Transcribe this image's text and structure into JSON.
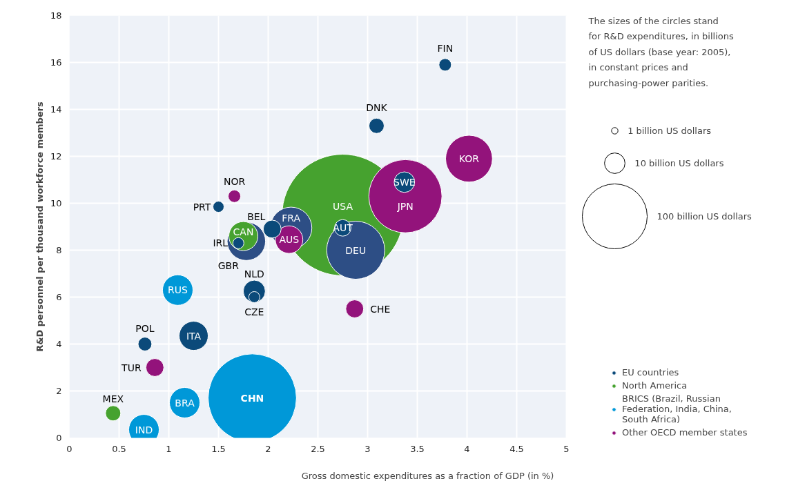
{
  "chart_data": {
    "type": "bubble",
    "xlabel": "Gross domestic expenditures as a fraction of GDP (in %)",
    "ylabel": "R&D personnel per thousand workforce members",
    "xlim": [
      0,
      5
    ],
    "xticks": [
      0,
      0.5,
      1,
      1.5,
      2,
      2.5,
      3,
      3.5,
      4,
      4.5,
      5
    ],
    "ylim": [
      0,
      18
    ],
    "yticks": [
      0,
      2,
      4,
      6,
      8,
      10,
      12,
      14,
      16,
      18
    ],
    "grid": true,
    "legend": "bottom right",
    "size_legend": [
      {
        "value": 1,
        "label": "1 billion US dollars"
      },
      {
        "value": 10,
        "label": "10  billion US dollars"
      },
      {
        "value": 100,
        "label": "100 billion US dollars"
      }
    ],
    "series": [
      {
        "name": "EU countries",
        "colors": [
          "#0b4a7a",
          "#0b4a7a",
          "#0b4a7a",
          "#2d4e85",
          "#0b4a7a",
          "#2d4e85",
          "#0b4a7a",
          "#2d4e85",
          "#0b4a7a",
          "#0b4a7a",
          "#0b4a7a",
          "#0b4a7a",
          "#0b4a7a",
          "#0b4a7a"
        ],
        "x": [
          3.78,
          3.09,
          3.37,
          2.88,
          2.75,
          2.23,
          2.04,
          1.78,
          1.7,
          1.5,
          1.86,
          1.86,
          0.76,
          1.25
        ],
        "values": [
          15.9,
          13.3,
          10.9,
          8.0,
          8.95,
          8.95,
          8.9,
          8.38,
          8.3,
          9.85,
          6.25,
          6.0,
          4.0,
          4.35
        ],
        "sizes": [
          3.7,
          5.5,
          10,
          80,
          6.5,
          41,
          7.6,
          35,
          2.9,
          2.9,
          11.6,
          2.9,
          4.5,
          20
        ]
      },
      {
        "name": "North America",
        "color": "#46a22f",
        "x": [
          2.75,
          1.75,
          0.44
        ],
        "values": [
          9.5,
          8.6,
          1.05
        ],
        "sizes": [
          350,
          20,
          5.5
        ]
      },
      {
        "name": "BRICS (Brazil, Russian Federation, India, China, South Africa)",
        "color": "#0098d8",
        "x": [
          1.09,
          1.16,
          0.75,
          1.84
        ],
        "values": [
          6.3,
          1.5,
          0.35,
          1.7
        ],
        "sizes": [
          22,
          22,
          22,
          185
        ]
      },
      {
        "name": "Other OECD member states",
        "color": "#93137b",
        "x": [
          4.02,
          3.38,
          2.21,
          1.66,
          0.86,
          2.87
        ],
        "values": [
          11.9,
          10.3,
          8.45,
          10.3,
          3.0,
          5.5
        ],
        "sizes": [
          52,
          127,
          18,
          3.7,
          7.6,
          7.6
        ]
      }
    ],
    "annotations": [
      "The sizes of the circles stand for R&D expenditures, in billions of US dollars (base year: 2005), in constant prices and purchasing-power parities.",
      {
        "text": "FIN",
        "x": 3.78,
        "y": 15.9
      },
      {
        "text": "DNK",
        "x": 3.09,
        "y": 13.3
      },
      {
        "text": "SWE",
        "x": 3.37,
        "y": 10.9
      },
      {
        "text": "DEU",
        "x": 2.88,
        "y": 8.0
      },
      {
        "text": "AUT",
        "x": 2.75,
        "y": 8.95
      },
      {
        "text": "FRA",
        "x": 2.23,
        "y": 8.95
      },
      {
        "text": "BEL",
        "x": 2.04,
        "y": 8.9
      },
      {
        "text": "GBR",
        "x": 1.78,
        "y": 8.38
      },
      {
        "text": "IRL",
        "x": 1.7,
        "y": 8.3
      },
      {
        "text": "PRT",
        "x": 1.5,
        "y": 9.85
      },
      {
        "text": "NLD",
        "x": 1.86,
        "y": 6.25
      },
      {
        "text": "CZE",
        "x": 1.86,
        "y": 6.0
      },
      {
        "text": "POL",
        "x": 0.76,
        "y": 4.0
      },
      {
        "text": "ITA",
        "x": 1.25,
        "y": 4.35
      },
      {
        "text": "USA",
        "x": 2.75,
        "y": 9.5
      },
      {
        "text": "CAN",
        "x": 1.75,
        "y": 8.6
      },
      {
        "text": "MEX",
        "x": 0.44,
        "y": 1.05
      },
      {
        "text": "RUS",
        "x": 1.09,
        "y": 6.3
      },
      {
        "text": "BRA",
        "x": 1.16,
        "y": 1.5
      },
      {
        "text": "IND",
        "x": 0.75,
        "y": 0.35
      },
      {
        "text": "CHN",
        "x": 1.84,
        "y": 1.7
      },
      {
        "text": "KOR",
        "x": 4.02,
        "y": 11.9
      },
      {
        "text": "JPN",
        "x": 3.38,
        "y": 10.3
      },
      {
        "text": "AUS",
        "x": 2.21,
        "y": 8.45
      },
      {
        "text": "NOR",
        "x": 1.66,
        "y": 10.3
      },
      {
        "text": "TUR",
        "x": 0.86,
        "y": 3.0
      },
      {
        "text": "CHE",
        "x": 2.87,
        "y": 5.5
      }
    ]
  }
}
